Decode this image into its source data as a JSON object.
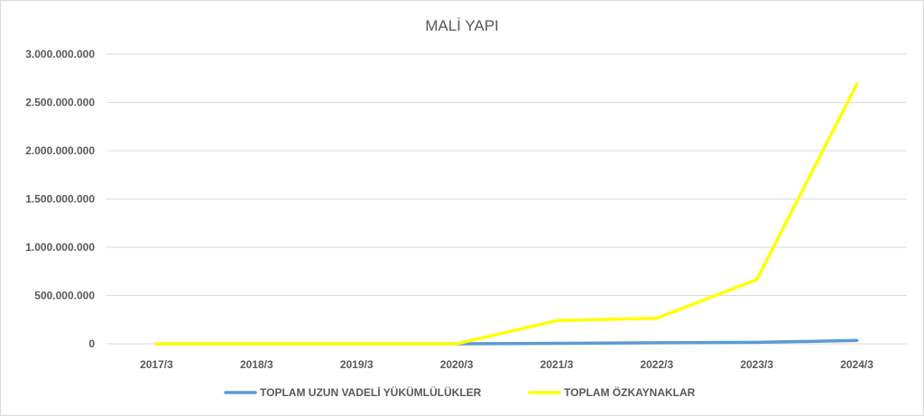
{
  "chart_data": {
    "type": "line",
    "title": "MALİ YAPI",
    "xlabel": "",
    "ylabel": "",
    "categories": [
      "2017/3",
      "2018/3",
      "2019/3",
      "2020/3",
      "2021/3",
      "2022/3",
      "2023/3",
      "2024/3"
    ],
    "ylim": [
      0,
      3000000000
    ],
    "y_ticks": [
      0,
      500000000,
      1000000000,
      1500000000,
      2000000000,
      2500000000,
      3000000000
    ],
    "y_tick_labels": [
      "0",
      "500.000.000",
      "1.000.000.000",
      "1.500.000.000",
      "2.000.000.000",
      "2.500.000.000",
      "3.000.000.000"
    ],
    "grid": true,
    "legend_position": "bottom",
    "series": [
      {
        "name": "TOPLAM UZUN VADELİ YÜKÜMLÜLÜKLER",
        "color": "#5B9BD5",
        "values": [
          0,
          0,
          0,
          0,
          5000000,
          10000000,
          15000000,
          35000000
        ]
      },
      {
        "name": "TOPLAM ÖZKAYNAKLAR",
        "color": "#FFFF00",
        "values": [
          0,
          0,
          0,
          0,
          240000000,
          265000000,
          665000000,
          2690000000
        ]
      }
    ]
  }
}
